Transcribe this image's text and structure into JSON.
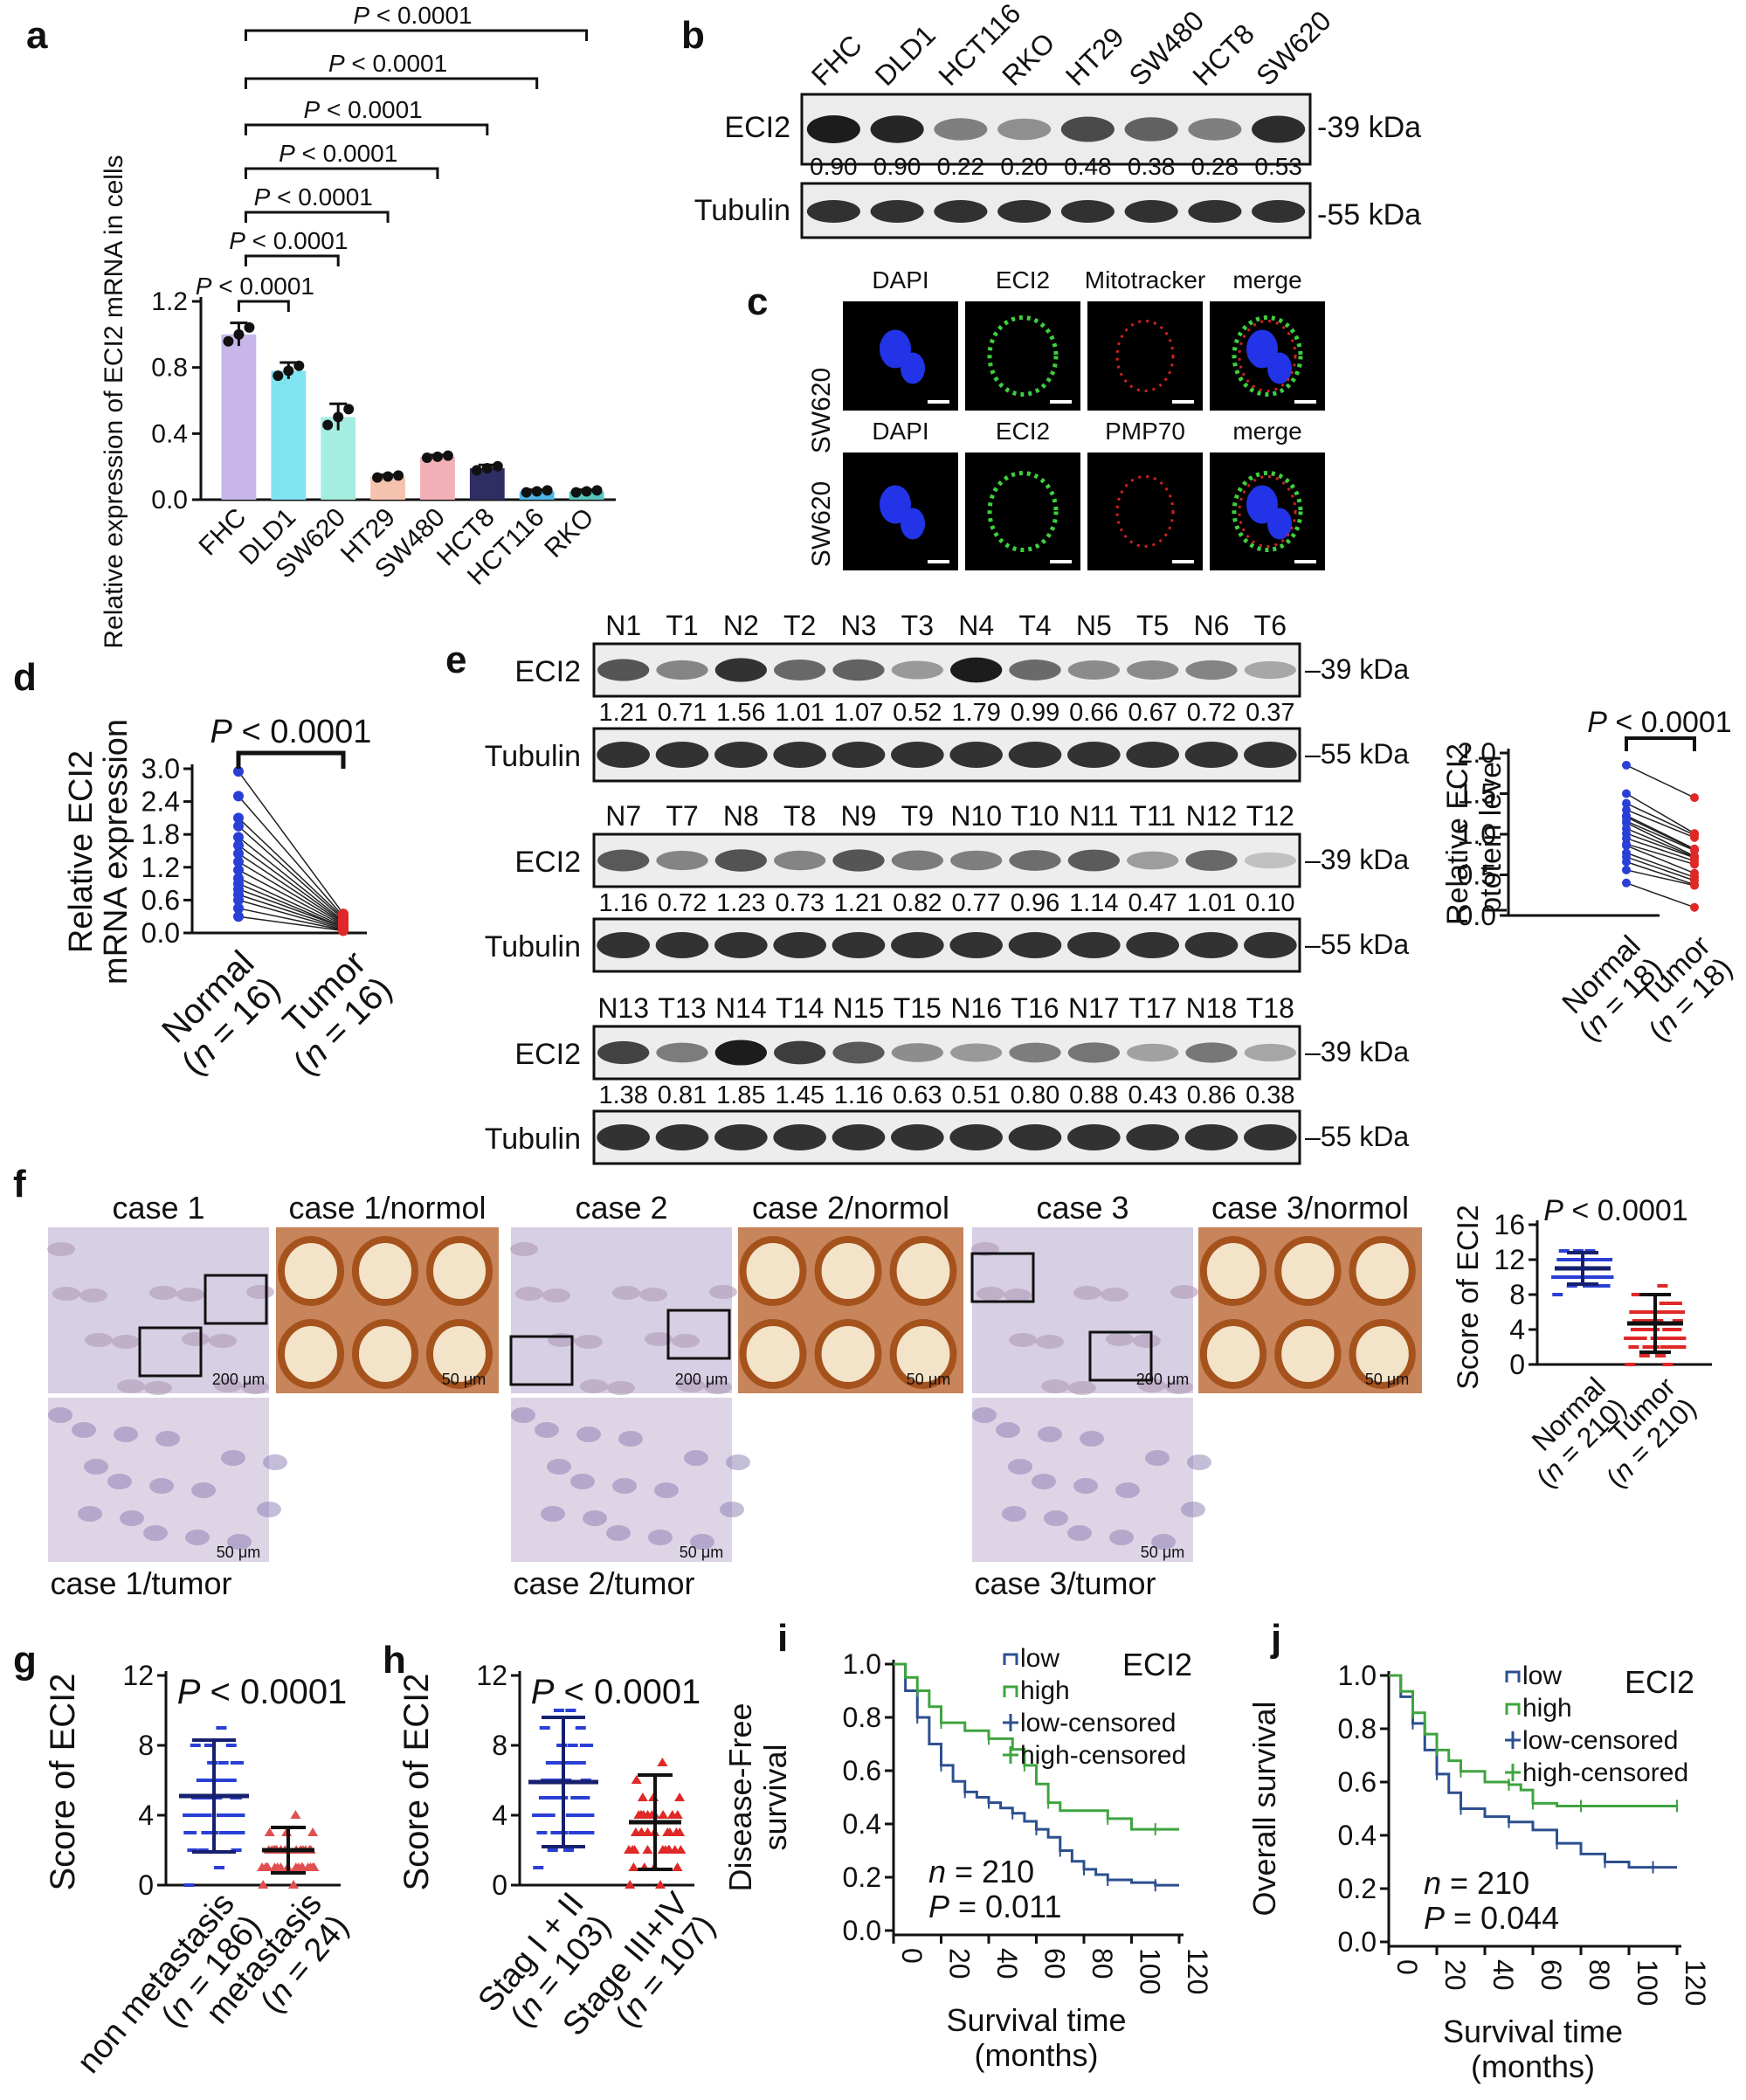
{
  "panels": {
    "a": {
      "letter": "a",
      "chart_data": {
        "type": "bar",
        "ylabel": "Relative expression of ECI2 mRNA in cells",
        "categories": [
          "FHC",
          "DLD1",
          "SW620",
          "HT29",
          "SW480",
          "HCT8",
          "HCT116",
          "RKO"
        ],
        "values": [
          1.0,
          0.78,
          0.5,
          0.14,
          0.26,
          0.19,
          0.05,
          0.05
        ],
        "errors": [
          0.07,
          0.05,
          0.08,
          0.01,
          0.01,
          0.02,
          0.01,
          0.01
        ],
        "colors": [
          "#c8b6ea",
          "#7fe3f0",
          "#a5ede0",
          "#f6c2b0",
          "#f2b1b6",
          "#2e2e63",
          "#4ab7e8",
          "#57c6c0"
        ],
        "ylim": [
          0,
          1.2
        ],
        "yticks": [
          "0.0",
          "0.4",
          "0.8",
          "1.2"
        ],
        "comparisons": [
          "P < 0.0001",
          "P < 0.0001",
          "P < 0.0001",
          "P < 0.0001",
          "P < 0.0001",
          "P < 0.0001",
          "P < 0.0001"
        ]
      }
    },
    "b": {
      "letter": "b",
      "lanes": [
        "FHC",
        "DLD1",
        "HCT116",
        "RKO",
        "HT29",
        "SW480",
        "HCT8",
        "SW620"
      ],
      "row1_label": "ECI2",
      "row1_kda": "-39 kDa",
      "quant": [
        "0.90",
        "0.90",
        "0.22",
        "0.20",
        "0.48",
        "0.38",
        "0.28",
        "0.53"
      ],
      "row2_label": "Tubulin",
      "row2_kda": "-55 kDa"
    },
    "c": {
      "letter": "c",
      "row_label": "SW620",
      "row1": [
        "DAPI",
        "ECI2",
        "Mitotracker",
        "merge"
      ],
      "row2": [
        "DAPI",
        "ECI2",
        "PMP70",
        "merge"
      ]
    },
    "d": {
      "letter": "d",
      "p_text": "P < 0.0001",
      "chart_data": {
        "type": "scatter",
        "ylabel": "Relative ECI2 mRNA expression",
        "categories": [
          "Normal (n = 16)",
          "Tumor (n = 16)"
        ],
        "yticks": [
          "0.0",
          "0.6",
          "1.2",
          "1.8",
          "2.4",
          "3.0"
        ],
        "ylim": [
          0,
          3.0
        ],
        "normal": [
          2.95,
          2.5,
          2.1,
          1.95,
          1.75,
          1.6,
          1.45,
          1.3,
          1.15,
          1.0,
          0.9,
          0.8,
          0.7,
          0.6,
          0.45,
          0.3
        ],
        "tumor": [
          0.35,
          0.3,
          0.28,
          0.25,
          0.22,
          0.2,
          0.18,
          0.16,
          0.14,
          0.12,
          0.1,
          0.1,
          0.08,
          0.06,
          0.05,
          0.04
        ]
      }
    },
    "e": {
      "letter": "e",
      "blots": [
        {
          "lanes": [
            "N1",
            "T1",
            "N2",
            "T2",
            "N3",
            "T3",
            "N4",
            "T4",
            "N5",
            "T5",
            "N6",
            "T6"
          ],
          "quant": [
            "1.21",
            "0.71",
            "1.56",
            "1.01",
            "1.07",
            "0.52",
            "1.79",
            "0.99",
            "0.66",
            "0.67",
            "0.72",
            "0.37"
          ]
        },
        {
          "lanes": [
            "N7",
            "T7",
            "N8",
            "T8",
            "N9",
            "T9",
            "N10",
            "T10",
            "N11",
            "T11",
            "N12",
            "T12"
          ],
          "quant": [
            "1.16",
            "0.72",
            "1.23",
            "0.73",
            "1.21",
            "0.82",
            "0.77",
            "0.96",
            "1.14",
            "0.47",
            "1.01",
            "0.10"
          ]
        },
        {
          "lanes": [
            "N13",
            "T13",
            "N14",
            "T14",
            "N15",
            "T15",
            "N16",
            "T16",
            "N17",
            "T17",
            "N18",
            "T18"
          ],
          "quant": [
            "1.38",
            "0.81",
            "1.85",
            "1.45",
            "1.16",
            "0.63",
            "0.51",
            "0.80",
            "0.88",
            "0.43",
            "0.86",
            "0.38"
          ]
        }
      ],
      "eci2": "ECI2",
      "tubulin": "Tubulin",
      "kda39": "–39 kDa",
      "kda55": "–55 kDa",
      "side": {
        "p_text": "P < 0.0001",
        "chart_data": {
          "type": "scatter",
          "ylabel": "Relative ECI2 ptotein level",
          "categories": [
            "Normal (n = 18)",
            "Tumor (n = 18)"
          ],
          "yticks": [
            "0.0",
            "0.5",
            "1.0",
            "1.5",
            "2.0"
          ],
          "ylim": [
            0,
            2.0
          ],
          "normal": [
            1.85,
            1.5,
            1.38,
            1.3,
            1.23,
            1.21,
            1.16,
            1.14,
            1.07,
            1.01,
            0.95,
            0.88,
            0.86,
            0.77,
            0.72,
            0.66,
            0.56,
            0.4
          ],
          "tumor": [
            1.45,
            1.01,
            0.99,
            0.96,
            0.82,
            0.81,
            0.8,
            0.73,
            0.72,
            0.71,
            0.67,
            0.63,
            0.52,
            0.47,
            0.43,
            0.38,
            0.37,
            0.1
          ]
        }
      }
    },
    "f": {
      "letter": "f",
      "titles": [
        "case 1",
        "case 1/normol",
        "case 2",
        "case 2/normol",
        "case 3",
        "case 3/normol"
      ],
      "tumor_titles": [
        "case 1/tumor",
        "case 2/tumor",
        "case 3/tumor"
      ],
      "scale200": "200 μm",
      "scale50": "50 μm",
      "side": {
        "p_text": "P < 0.0001",
        "chart_data": {
          "type": "scatter",
          "ylabel": "Score of ECI2",
          "categories": [
            "Normal (n = 210)",
            "Tumor (n = 210)"
          ],
          "yticks": [
            "0",
            "4",
            "8",
            "12",
            "16"
          ],
          "ylim": [
            0,
            16
          ],
          "normal_mean": 11,
          "normal_sd": 1.8,
          "tumor_mean": 4.7,
          "tumor_sd": 3.3
        }
      }
    },
    "g": {
      "letter": "g",
      "p_text": "P < 0.0001",
      "chart_data": {
        "type": "scatter",
        "ylabel": "Score of ECI2",
        "categories": [
          "non metastasis (n = 186)",
          "metastasis (n = 24)"
        ],
        "yticks": [
          "0",
          "4",
          "8",
          "12"
        ],
        "ylim": [
          0,
          12
        ],
        "mean": [
          5.1,
          2.0
        ],
        "sd": [
          3.2,
          1.3
        ]
      }
    },
    "h": {
      "letter": "h",
      "p_text": "P < 0.0001",
      "chart_data": {
        "type": "scatter",
        "ylabel": "Score of ECI2",
        "categories": [
          "Stag I + II (n = 103)",
          "Stage III+IV (n = 107)"
        ],
        "yticks": [
          "0",
          "4",
          "8",
          "12"
        ],
        "ylim": [
          0,
          12
        ],
        "mean": [
          5.9,
          3.6
        ],
        "sd": [
          3.7,
          2.7
        ]
      }
    },
    "i": {
      "letter": "i",
      "chart_data": {
        "type": "line",
        "ylabel": "Disease-Free survival",
        "xlabel": "Survival time (months)",
        "xticks": [
          "0",
          "20",
          "40",
          "60",
          "80",
          "100",
          "120"
        ],
        "yticks": [
          "0.0",
          "0.2",
          "0.4",
          "0.6",
          "0.8",
          "1.0"
        ],
        "xlim": [
          0,
          120
        ],
        "ylim": [
          0,
          1.0
        ],
        "legend_title": "ECI2",
        "legend": [
          "low",
          "high",
          "low-censored",
          "high-censored"
        ],
        "n_text": "n = 210",
        "p_text": "P = 0.011",
        "series": [
          {
            "name": "low",
            "color": "#2c4f8f",
            "x": [
              0,
              5,
              10,
              15,
              20,
              25,
              30,
              35,
              40,
              45,
              50,
              55,
              60,
              65,
              70,
              75,
              80,
              85,
              90,
              100,
              110,
              120
            ],
            "y": [
              1.0,
              0.9,
              0.8,
              0.7,
              0.62,
              0.56,
              0.52,
              0.5,
              0.48,
              0.46,
              0.44,
              0.41,
              0.38,
              0.35,
              0.3,
              0.26,
              0.23,
              0.21,
              0.19,
              0.18,
              0.17,
              0.17
            ]
          },
          {
            "name": "high",
            "color": "#3fa43f",
            "x": [
              0,
              5,
              10,
              15,
              20,
              30,
              40,
              50,
              55,
              60,
              65,
              70,
              90,
              100,
              110,
              120
            ],
            "y": [
              1.0,
              0.95,
              0.9,
              0.84,
              0.78,
              0.75,
              0.72,
              0.68,
              0.62,
              0.55,
              0.48,
              0.45,
              0.42,
              0.38,
              0.38,
              0.38
            ]
          }
        ]
      }
    },
    "j": {
      "letter": "j",
      "chart_data": {
        "type": "line",
        "ylabel": "Overall survival",
        "xlabel": "Survival time (months)",
        "xticks": [
          "0",
          "20",
          "40",
          "60",
          "80",
          "100",
          "120"
        ],
        "yticks": [
          "0.0",
          "0.2",
          "0.4",
          "0.6",
          "0.8",
          "1.0"
        ],
        "xlim": [
          0,
          120
        ],
        "ylim": [
          0,
          1.0
        ],
        "legend_title": "ECI2",
        "legend": [
          "low",
          "high",
          "low-censored",
          "high-censored"
        ],
        "n_text": "n = 210",
        "p_text": "P = 0.044",
        "series": [
          {
            "name": "low",
            "color": "#2c4f8f",
            "x": [
              0,
              5,
              10,
              15,
              20,
              25,
              30,
              40,
              50,
              60,
              70,
              80,
              90,
              100,
              110,
              120
            ],
            "y": [
              1.0,
              0.92,
              0.82,
              0.72,
              0.63,
              0.56,
              0.5,
              0.47,
              0.45,
              0.42,
              0.37,
              0.33,
              0.3,
              0.28,
              0.28,
              0.28
            ]
          },
          {
            "name": "high",
            "color": "#3fa43f",
            "x": [
              0,
              5,
              10,
              15,
              20,
              25,
              30,
              40,
              50,
              55,
              60,
              70,
              80,
              100,
              120
            ],
            "y": [
              1.0,
              0.94,
              0.86,
              0.78,
              0.72,
              0.68,
              0.64,
              0.6,
              0.59,
              0.57,
              0.52,
              0.51,
              0.51,
              0.51,
              0.51
            ]
          }
        ]
      }
    }
  }
}
